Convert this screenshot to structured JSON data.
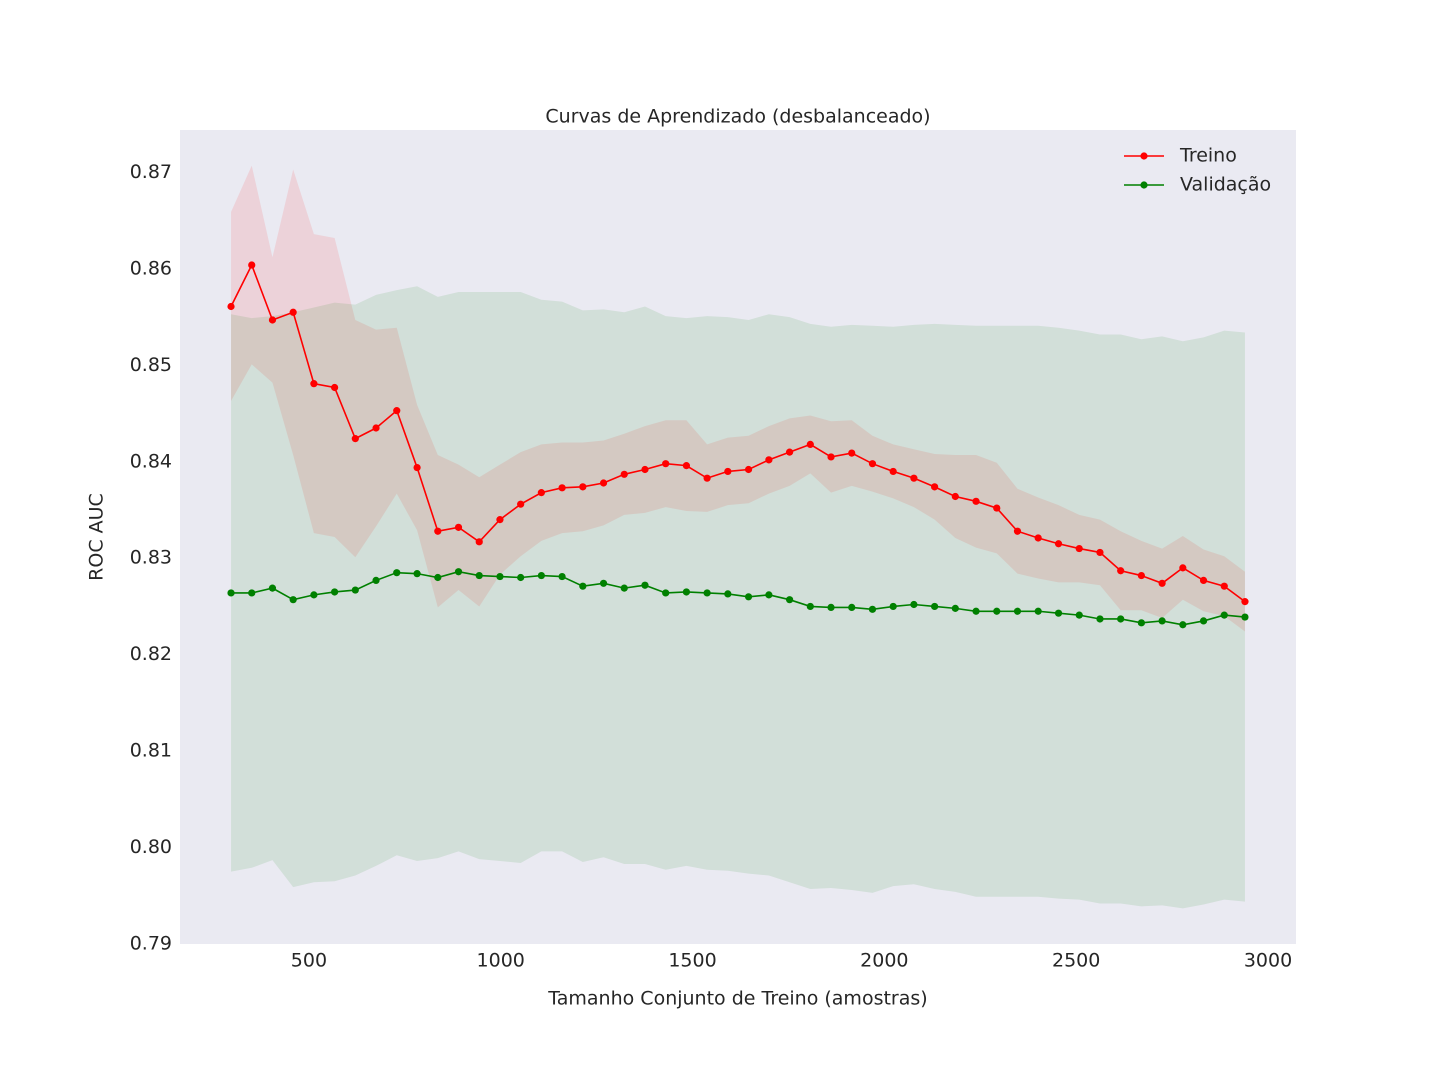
{
  "chart_data": {
    "type": "line",
    "title": "Curvas de Aprendizado (desbalanceado)",
    "x_label": "Tamanho Conjunto de Treino (amostras)",
    "y_label": "ROC AUC",
    "x": [
      297,
      351,
      405,
      459,
      513,
      567,
      621,
      675,
      729,
      782,
      836,
      890,
      944,
      998,
      1052,
      1106,
      1160,
      1214,
      1268,
      1322,
      1376,
      1430,
      1484,
      1538,
      1592,
      1646,
      1699,
      1753,
      1807,
      1861,
      1915,
      1969,
      2023,
      2077,
      2131,
      2185,
      2239,
      2293,
      2347,
      2401,
      2454,
      2508,
      2562,
      2616,
      2670,
      2724,
      2778,
      2832,
      2886,
      2940
    ],
    "series": [
      {
        "name": "Treino",
        "color": "#ff0000",
        "values": [
          0.8561,
          0.8604,
          0.8547,
          0.8555,
          0.8481,
          0.8477,
          0.8424,
          0.8435,
          0.8453,
          0.8394,
          0.8328,
          0.8332,
          0.8317,
          0.834,
          0.8356,
          0.8368,
          0.8373,
          0.8374,
          0.8378,
          0.8387,
          0.8392,
          0.8398,
          0.8396,
          0.8383,
          0.839,
          0.8392,
          0.8402,
          0.841,
          0.8418,
          0.8405,
          0.8409,
          0.8398,
          0.839,
          0.8383,
          0.8374,
          0.8364,
          0.8359,
          0.8352,
          0.8328,
          0.8321,
          0.8315,
          0.831,
          0.8306,
          0.8287,
          0.8282,
          0.8274,
          0.829,
          0.8277,
          0.8271,
          0.8255
        ],
        "std": [
          0.0098,
          0.0103,
          0.0065,
          0.0148,
          0.0155,
          0.0155,
          0.0123,
          0.0102,
          0.0086,
          0.0065,
          0.0079,
          0.0065,
          0.0067,
          0.0057,
          0.0054,
          0.005,
          0.0047,
          0.0046,
          0.0044,
          0.0042,
          0.0045,
          0.0045,
          0.0047,
          0.0035,
          0.0035,
          0.0035,
          0.0035,
          0.0035,
          0.003,
          0.0037,
          0.0034,
          0.0029,
          0.0028,
          0.003,
          0.0034,
          0.0043,
          0.0048,
          0.0047,
          0.0044,
          0.0042,
          0.004,
          0.0035,
          0.0034,
          0.0041,
          0.0036,
          0.0036,
          0.0033,
          0.0032,
          0.0031,
          0.0031
        ]
      },
      {
        "name": "Validação",
        "color": "#008000",
        "values": [
          0.8264,
          0.8264,
          0.8269,
          0.8257,
          0.8262,
          0.8265,
          0.8267,
          0.8277,
          0.8285,
          0.8284,
          0.828,
          0.8286,
          0.8282,
          0.8281,
          0.828,
          0.8282,
          0.8281,
          0.8271,
          0.8274,
          0.8269,
          0.8272,
          0.8264,
          0.8265,
          0.8264,
          0.8263,
          0.826,
          0.8262,
          0.8257,
          0.825,
          0.8249,
          0.8249,
          0.8247,
          0.825,
          0.8252,
          0.825,
          0.8248,
          0.8245,
          0.8245,
          0.8245,
          0.8245,
          0.8243,
          0.8241,
          0.8237,
          0.8237,
          0.8233,
          0.8235,
          0.8231,
          0.8235,
          0.8241,
          0.8239
        ],
        "std": [
          0.0289,
          0.0285,
          0.0282,
          0.0298,
          0.0298,
          0.03,
          0.0296,
          0.0296,
          0.0293,
          0.0298,
          0.0291,
          0.029,
          0.0294,
          0.0295,
          0.0296,
          0.0286,
          0.0285,
          0.0286,
          0.0284,
          0.0286,
          0.0289,
          0.0287,
          0.0284,
          0.0287,
          0.0287,
          0.0287,
          0.0291,
          0.0293,
          0.0293,
          0.0291,
          0.0293,
          0.0294,
          0.029,
          0.029,
          0.0293,
          0.0294,
          0.0296,
          0.0296,
          0.0296,
          0.0296,
          0.0296,
          0.0295,
          0.0295,
          0.0295,
          0.0294,
          0.0295,
          0.0294,
          0.0294,
          0.0295,
          0.0295
        ]
      }
    ],
    "xlim": [
      164,
      3073
    ],
    "ylim": [
      0.79,
      0.8744
    ],
    "xticks": [
      500,
      1000,
      1500,
      2000,
      2500,
      3000
    ],
    "yticks": [
      0.79,
      {
        "value": 0.8,
        "label": "0.80"
      },
      0.81,
      0.82,
      0.83,
      0.84,
      0.85,
      0.86,
      0.87
    ],
    "grid": false,
    "legend": "upper right",
    "background": "#eaeaf2"
  }
}
